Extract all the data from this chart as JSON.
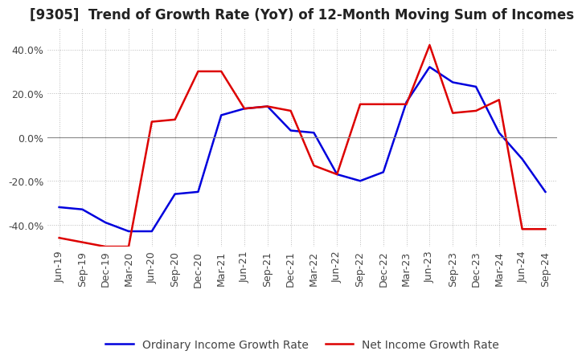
{
  "title": "[9305]  Trend of Growth Rate (YoY) of 12-Month Moving Sum of Incomes",
  "title_fontsize": 12,
  "tick_fontsize": 9,
  "legend_fontsize": 10,
  "ylim": [
    -0.5,
    0.5
  ],
  "yticks": [
    -0.4,
    -0.2,
    0.0,
    0.2,
    0.4
  ],
  "background_color": "#ffffff",
  "grid_color": "#bbbbbb",
  "line1_color": "#0000dd",
  "line2_color": "#dd0000",
  "line1_label": "Ordinary Income Growth Rate",
  "line2_label": "Net Income Growth Rate",
  "dates": [
    "Jun-19",
    "Sep-19",
    "Dec-19",
    "Mar-20",
    "Jun-20",
    "Sep-20",
    "Dec-20",
    "Mar-21",
    "Jun-21",
    "Sep-21",
    "Dec-21",
    "Mar-22",
    "Jun-22",
    "Sep-22",
    "Dec-22",
    "Mar-23",
    "Jun-23",
    "Sep-23",
    "Dec-23",
    "Mar-24",
    "Jun-24",
    "Sep-24"
  ],
  "ordinary_income": [
    -0.32,
    -0.33,
    -0.39,
    -0.43,
    -0.43,
    -0.26,
    -0.25,
    0.1,
    0.13,
    0.14,
    0.03,
    0.02,
    -0.17,
    -0.2,
    -0.16,
    0.16,
    0.32,
    0.25,
    0.23,
    0.02,
    -0.1,
    -0.25
  ],
  "net_income": [
    -0.46,
    -0.48,
    -0.5,
    -0.5,
    0.07,
    0.08,
    0.3,
    0.3,
    0.13,
    0.14,
    0.12,
    -0.13,
    -0.17,
    0.15,
    0.15,
    0.15,
    0.42,
    0.11,
    0.12,
    0.17,
    -0.42,
    -0.42
  ]
}
